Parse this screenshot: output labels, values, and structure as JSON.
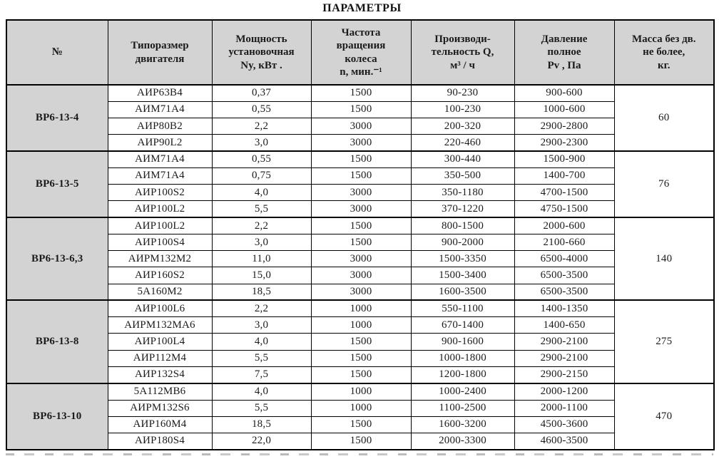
{
  "page": {
    "title": "ПАРАМЕТРЫ"
  },
  "colors": {
    "header_background": "#d3d3d3",
    "border": "#000000",
    "text": "#1b1b1b",
    "page_background": "#ffffff"
  },
  "table": {
    "headers": [
      {
        "id": "num",
        "text": "№"
      },
      {
        "id": "motor",
        "text": "Типоразмер\nдвигателя"
      },
      {
        "id": "power",
        "text": "Мощность\nустановочная\nNy, кВт ."
      },
      {
        "id": "speed",
        "text": "Частота\nвращения\nколеса\nn, мин.⁻¹"
      },
      {
        "id": "capacity",
        "text": "Производи-\nтельность Q,\nм³ / ч"
      },
      {
        "id": "pressure",
        "text": "Давление\nполное\nPv , Па"
      },
      {
        "id": "mass",
        "text": "Масса без дв.\nне более,\nкг."
      }
    ],
    "groups": [
      {
        "id": "ВР6-13-4",
        "mass": "60",
        "rows": [
          [
            "АИР63В4",
            "0,37",
            "1500",
            "90-230",
            "900-600"
          ],
          [
            "АИМ71А4",
            "0,55",
            "1500",
            "100-230",
            "1000-600"
          ],
          [
            "АИР80В2",
            "2,2",
            "3000",
            "200-320",
            "2900-2800"
          ],
          [
            "АИР90L2",
            "3,0",
            "3000",
            "220-460",
            "2900-2300"
          ]
        ]
      },
      {
        "id": "ВР6-13-5",
        "mass": "76",
        "rows": [
          [
            "АИМ71А4",
            "0,55",
            "1500",
            "300-440",
            "1500-900"
          ],
          [
            "АИМ71А4",
            "0,75",
            "1500",
            "350-500",
            "1400-700"
          ],
          [
            "АИР100S2",
            "4,0",
            "3000",
            "350-1180",
            "4700-1500"
          ],
          [
            "АИР100L2",
            "5,5",
            "3000",
            "370-1220",
            "4750-1500"
          ]
        ]
      },
      {
        "id": "ВР6-13-6,3",
        "mass": "140",
        "rows": [
          [
            "АИР100L2",
            "2,2",
            "1500",
            "800-1500",
            "2000-600"
          ],
          [
            "АИР100S4",
            "3,0",
            "1500",
            "900-2000",
            "2100-660"
          ],
          [
            "АИРМ132М2",
            "11,0",
            "3000",
            "1500-3350",
            "6500-4000"
          ],
          [
            "АИР160S2",
            "15,0",
            "3000",
            "1500-3400",
            "6500-3500"
          ],
          [
            "5А160М2",
            "18,5",
            "3000",
            "1600-3500",
            "6500-3500"
          ]
        ]
      },
      {
        "id": "ВР6-13-8",
        "mass": "275",
        "rows": [
          [
            "АИР100L6",
            "2,2",
            "1000",
            "550-1100",
            "1400-1350"
          ],
          [
            "АИРМ132МА6",
            "3,0",
            "1000",
            "670-1400",
            "1400-650"
          ],
          [
            "АИР100L4",
            "4,0",
            "1500",
            "900-1600",
            "2900-2100"
          ],
          [
            "АИР112М4",
            "5,5",
            "1500",
            "1000-1800",
            "2900-2100"
          ],
          [
            "АИР132S4",
            "7,5",
            "1500",
            "1200-1800",
            "2900-2150"
          ]
        ]
      },
      {
        "id": "ВР6-13-10",
        "mass": "470",
        "rows": [
          [
            "5А112МВ6",
            "4,0",
            "1000",
            "1000-2400",
            "2000-1200"
          ],
          [
            "АИРМ132S6",
            "5,5",
            "1000",
            "1100-2500",
            "2000-1100"
          ],
          [
            "АИР160М4",
            "18,5",
            "1500",
            "1600-3200",
            "4500-3600"
          ],
          [
            "АИР180S4",
            "22,0",
            "1500",
            "2000-3300",
            "4600-3500"
          ]
        ]
      }
    ]
  }
}
